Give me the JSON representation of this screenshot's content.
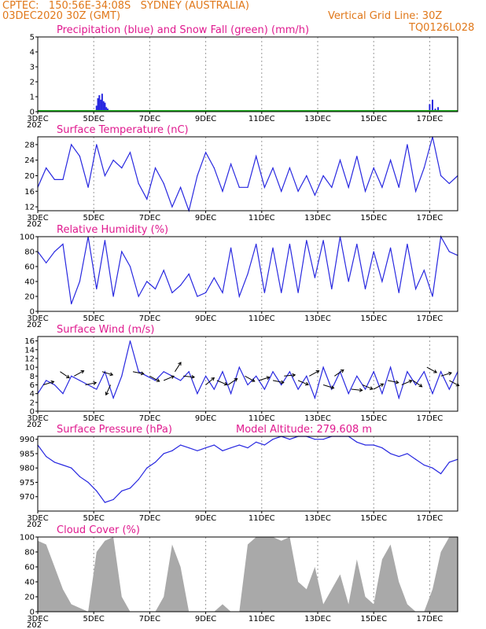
{
  "header": {
    "line1": "CPTEC:   150:56E-34:08S   SYDNEY (AUSTRALIA)",
    "line2_left": "03DEC2020 30Z (GMT)",
    "line2_right": "Vertical Grid Line: 30Z",
    "run_code": "TQ0126L028"
  },
  "xaxis": {
    "labels": [
      "3DEC",
      "5DEC",
      "7DEC",
      "9DEC",
      "11DEC",
      "13DEC",
      "15DEC",
      "17DEC"
    ],
    "partial_label": "202"
  },
  "colors": {
    "header": "#e0781a",
    "title": "#e01a8f",
    "line": "#2828e0",
    "snow": "#20b020",
    "cloud": "#a9a9a9",
    "grid": "#9a9a9a"
  },
  "chart_data": [
    {
      "type": "bar",
      "title": "Precipitation (blue) and Snow Fall (green) (mm/h)",
      "ylim": [
        0,
        5
      ],
      "yticks": [
        0,
        1,
        2,
        3,
        4,
        5
      ],
      "x_days": [
        5.1,
        5.15,
        5.2,
        5.25,
        5.3,
        5.35,
        5.4,
        5.45,
        5.5,
        17.0,
        17.1,
        17.2,
        17.3
      ],
      "precipitation": [
        0.4,
        0.9,
        1.1,
        0.8,
        1.2,
        0.7,
        0.6,
        0.3,
        0.2,
        0.5,
        0.8,
        0.2,
        0.3
      ],
      "snowfall": "0 throughout"
    },
    {
      "type": "line",
      "title": "Surface Temperature (nC)",
      "ylim": [
        11,
        30
      ],
      "yticks": [
        12,
        16,
        20,
        24,
        28
      ],
      "x_days": [
        3.0,
        3.3,
        3.6,
        3.9,
        4.2,
        4.5,
        4.8,
        5.1,
        5.4,
        5.7,
        6.0,
        6.3,
        6.6,
        6.9,
        7.2,
        7.5,
        7.8,
        8.1,
        8.4,
        8.7,
        9.0,
        9.3,
        9.6,
        9.9,
        10.2,
        10.5,
        10.8,
        11.1,
        11.4,
        11.7,
        12.0,
        12.3,
        12.6,
        12.9,
        13.2,
        13.5,
        13.8,
        14.1,
        14.4,
        14.7,
        15.0,
        15.3,
        15.6,
        15.9,
        16.2,
        16.5,
        16.8,
        17.1,
        17.4,
        17.7,
        18.0
      ],
      "values": [
        17,
        22,
        19,
        19,
        28,
        25,
        17,
        28,
        20,
        24,
        22,
        26,
        18,
        14,
        22,
        18,
        12,
        17,
        11,
        20,
        26,
        22,
        16,
        23,
        17,
        17,
        25,
        17,
        22,
        16,
        22,
        16,
        20,
        15,
        20,
        17,
        24,
        17,
        25,
        16,
        22,
        17,
        24,
        17,
        28,
        16,
        22,
        30,
        20,
        18,
        20
      ]
    },
    {
      "type": "line",
      "title": "Relative Humidity (%)",
      "ylim": [
        0,
        100
      ],
      "yticks": [
        0,
        20,
        40,
        60,
        80,
        100
      ],
      "x_days": [
        3.0,
        3.3,
        3.6,
        3.9,
        4.2,
        4.5,
        4.8,
        5.1,
        5.4,
        5.7,
        6.0,
        6.3,
        6.6,
        6.9,
        7.2,
        7.5,
        7.8,
        8.1,
        8.4,
        8.7,
        9.0,
        9.3,
        9.6,
        9.9,
        10.2,
        10.5,
        10.8,
        11.1,
        11.4,
        11.7,
        12.0,
        12.3,
        12.6,
        12.9,
        13.2,
        13.5,
        13.8,
        14.1,
        14.4,
        14.7,
        15.0,
        15.3,
        15.6,
        15.9,
        16.2,
        16.5,
        16.8,
        17.1,
        17.4,
        17.7,
        18.0
      ],
      "values": [
        80,
        65,
        80,
        90,
        10,
        40,
        100,
        30,
        95,
        20,
        80,
        60,
        20,
        40,
        30,
        55,
        25,
        35,
        50,
        20,
        25,
        45,
        25,
        85,
        20,
        50,
        90,
        25,
        85,
        25,
        90,
        25,
        95,
        45,
        95,
        30,
        100,
        40,
        90,
        30,
        80,
        40,
        85,
        25,
        90,
        30,
        55,
        20,
        100,
        80,
        75
      ]
    },
    {
      "type": "line",
      "title": "Surface Wind (m/s)",
      "ylim": [
        0,
        17
      ],
      "yticks": [
        0,
        2,
        4,
        6,
        8,
        10,
        12,
        14,
        16
      ],
      "x_days": [
        3.0,
        3.3,
        3.6,
        3.9,
        4.2,
        4.5,
        4.8,
        5.1,
        5.4,
        5.7,
        6.0,
        6.3,
        6.6,
        6.9,
        7.2,
        7.5,
        7.8,
        8.1,
        8.4,
        8.7,
        9.0,
        9.3,
        9.6,
        9.9,
        10.2,
        10.5,
        10.8,
        11.1,
        11.4,
        11.7,
        12.0,
        12.3,
        12.6,
        12.9,
        13.2,
        13.5,
        13.8,
        14.1,
        14.4,
        14.7,
        15.0,
        15.3,
        15.6,
        15.9,
        16.2,
        16.5,
        16.8,
        17.1,
        17.4,
        17.7,
        18.0
      ],
      "values": [
        4,
        7,
        6,
        4,
        8,
        7,
        6,
        5,
        9,
        3,
        8,
        16,
        9,
        8,
        7,
        9,
        8,
        7,
        9,
        4,
        8,
        5,
        9,
        4,
        10,
        6,
        8,
        5,
        9,
        6,
        9,
        5,
        8,
        3,
        10,
        5,
        9,
        4,
        8,
        5,
        9,
        4,
        10,
        3,
        9,
        6,
        9,
        4,
        9,
        5,
        9
      ]
    },
    {
      "type": "line",
      "title": "Surface Pressure (hPa)",
      "subtitle": "Model Altitude: 279.608 m",
      "ylim": [
        965,
        991
      ],
      "yticks": [
        970,
        975,
        980,
        985,
        990
      ],
      "x_days": [
        3.0,
        3.3,
        3.6,
        3.9,
        4.2,
        4.5,
        4.8,
        5.1,
        5.4,
        5.7,
        6.0,
        6.3,
        6.6,
        6.9,
        7.2,
        7.5,
        7.8,
        8.1,
        8.4,
        8.7,
        9.0,
        9.3,
        9.6,
        9.9,
        10.2,
        10.5,
        10.8,
        11.1,
        11.4,
        11.7,
        12.0,
        12.3,
        12.6,
        12.9,
        13.2,
        13.5,
        13.8,
        14.1,
        14.4,
        14.7,
        15.0,
        15.3,
        15.6,
        15.9,
        16.2,
        16.5,
        16.8,
        17.1,
        17.4,
        17.7,
        18.0
      ],
      "values": [
        988,
        984,
        982,
        981,
        980,
        977,
        975,
        972,
        968,
        969,
        972,
        973,
        976,
        980,
        982,
        985,
        986,
        988,
        987,
        986,
        987,
        988,
        986,
        987,
        988,
        987,
        989,
        988,
        990,
        991,
        990,
        991,
        991,
        990,
        990,
        991,
        991,
        991,
        989,
        988,
        988,
        987,
        985,
        984,
        985,
        983,
        981,
        980,
        978,
        982,
        983
      ]
    },
    {
      "type": "area",
      "title": "Cloud Cover (%)",
      "ylim": [
        0,
        100
      ],
      "yticks": [
        0,
        20,
        40,
        60,
        80,
        100
      ],
      "x_days": [
        3.0,
        3.3,
        3.6,
        3.9,
        4.2,
        4.5,
        4.8,
        5.1,
        5.4,
        5.7,
        6.0,
        6.3,
        6.6,
        6.9,
        7.2,
        7.5,
        7.8,
        8.1,
        8.4,
        8.7,
        9.0,
        9.3,
        9.6,
        9.9,
        10.2,
        10.5,
        10.8,
        11.1,
        11.4,
        11.7,
        12.0,
        12.3,
        12.6,
        12.9,
        13.2,
        13.5,
        13.8,
        14.1,
        14.4,
        14.7,
        15.0,
        15.3,
        15.6,
        15.9,
        16.2,
        16.5,
        16.8,
        17.1,
        17.4,
        17.7,
        18.0
      ],
      "values": [
        95,
        90,
        60,
        30,
        10,
        5,
        0,
        80,
        95,
        100,
        20,
        0,
        0,
        0,
        0,
        20,
        90,
        60,
        0,
        0,
        0,
        0,
        10,
        0,
        0,
        90,
        100,
        100,
        100,
        95,
        100,
        40,
        30,
        60,
        10,
        30,
        50,
        10,
        70,
        20,
        10,
        70,
        90,
        40,
        10,
        0,
        0,
        30,
        80,
        100,
        100
      ]
    }
  ]
}
